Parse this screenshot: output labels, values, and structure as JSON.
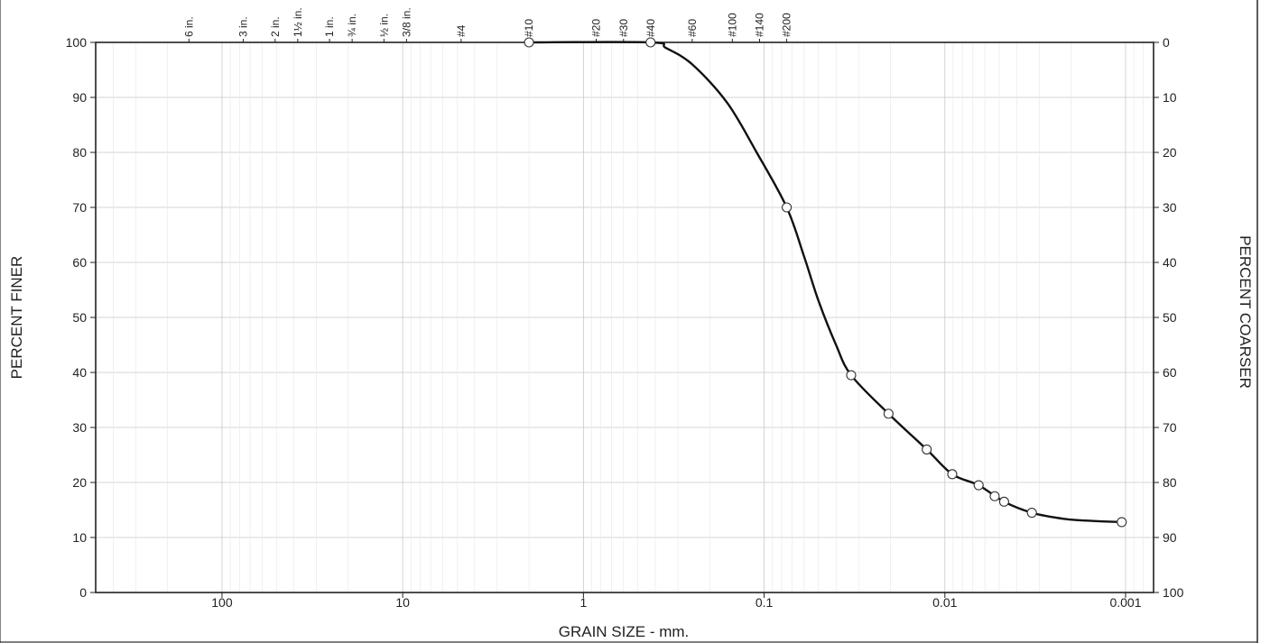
{
  "chart_data": {
    "type": "line",
    "xlabel": "GRAIN SIZE - mm.",
    "ylabel": "PERCENT FINER",
    "ylabel_right": "PERCENT COARSER",
    "x_scale": "log",
    "x_reversed": true,
    "xlim": [
      500,
      0.0007
    ],
    "ylim": [
      0,
      100
    ],
    "x_ticks": [
      {
        "value": 100,
        "label": "100"
      },
      {
        "value": 10,
        "label": "10"
      },
      {
        "value": 1,
        "label": "1"
      },
      {
        "value": 0.1,
        "label": "0.1"
      },
      {
        "value": 0.01,
        "label": "0.01"
      },
      {
        "value": 0.001,
        "label": "0.001"
      }
    ],
    "y_ticks_left": [
      "0",
      "10",
      "20",
      "30",
      "40",
      "50",
      "60",
      "70",
      "80",
      "90",
      "100"
    ],
    "y_ticks_right": [
      "100",
      "90",
      "80",
      "70",
      "60",
      "50",
      "40",
      "30",
      "20",
      "10",
      "0"
    ],
    "sieve_sizes": [
      {
        "label": "6 in.",
        "size": 152.4
      },
      {
        "label": "3 in.",
        "size": 76.2
      },
      {
        "label": "2 in.",
        "size": 50.8
      },
      {
        "label": "1½ in.",
        "size": 38.1
      },
      {
        "label": "1 in.",
        "size": 25.4
      },
      {
        "label": "¾ in.",
        "size": 19.05
      },
      {
        "label": "½ in.",
        "size": 12.7
      },
      {
        "label": "3/8 in.",
        "size": 9.525
      },
      {
        "label": "#4",
        "size": 4.75
      },
      {
        "label": "#10",
        "size": 2.0
      },
      {
        "label": "#20",
        "size": 0.85
      },
      {
        "label": "#30",
        "size": 0.6
      },
      {
        "label": "#40",
        "size": 0.425
      },
      {
        "label": "#60",
        "size": 0.25
      },
      {
        "label": "#100",
        "size": 0.15
      },
      {
        "label": "#140",
        "size": 0.106
      },
      {
        "label": "#200",
        "size": 0.075
      }
    ],
    "series": [
      {
        "points": [
          {
            "x": 2.0,
            "y": 100
          },
          {
            "x": 0.425,
            "y": 100
          },
          {
            "x": 0.075,
            "y": 70
          },
          {
            "x": 0.033,
            "y": 39.5
          },
          {
            "x": 0.0205,
            "y": 32.5
          },
          {
            "x": 0.0126,
            "y": 26
          },
          {
            "x": 0.0091,
            "y": 21.5
          },
          {
            "x": 0.0065,
            "y": 19.5
          },
          {
            "x": 0.0053,
            "y": 17.5
          },
          {
            "x": 0.0047,
            "y": 16.5
          },
          {
            "x": 0.0033,
            "y": 14.5
          },
          {
            "x": 0.00105,
            "y": 12.8
          }
        ],
        "curve_shape": [
          {
            "x": 2.0,
            "y": 100
          },
          {
            "x": 0.425,
            "y": 100
          },
          {
            "x": 0.35,
            "y": 99
          },
          {
            "x": 0.25,
            "y": 96
          },
          {
            "x": 0.16,
            "y": 89
          },
          {
            "x": 0.11,
            "y": 80
          },
          {
            "x": 0.075,
            "y": 70
          },
          {
            "x": 0.06,
            "y": 61
          },
          {
            "x": 0.05,
            "y": 53
          },
          {
            "x": 0.04,
            "y": 45
          },
          {
            "x": 0.033,
            "y": 39.5
          },
          {
            "x": 0.0205,
            "y": 32.5
          },
          {
            "x": 0.0126,
            "y": 26
          },
          {
            "x": 0.0091,
            "y": 21.5
          },
          {
            "x": 0.0065,
            "y": 19.5
          },
          {
            "x": 0.0047,
            "y": 16.5
          },
          {
            "x": 0.0033,
            "y": 14.5
          },
          {
            "x": 0.0022,
            "y": 13.4
          },
          {
            "x": 0.0015,
            "y": 13.0
          },
          {
            "x": 0.00105,
            "y": 12.8
          }
        ]
      }
    ],
    "grid": true
  }
}
